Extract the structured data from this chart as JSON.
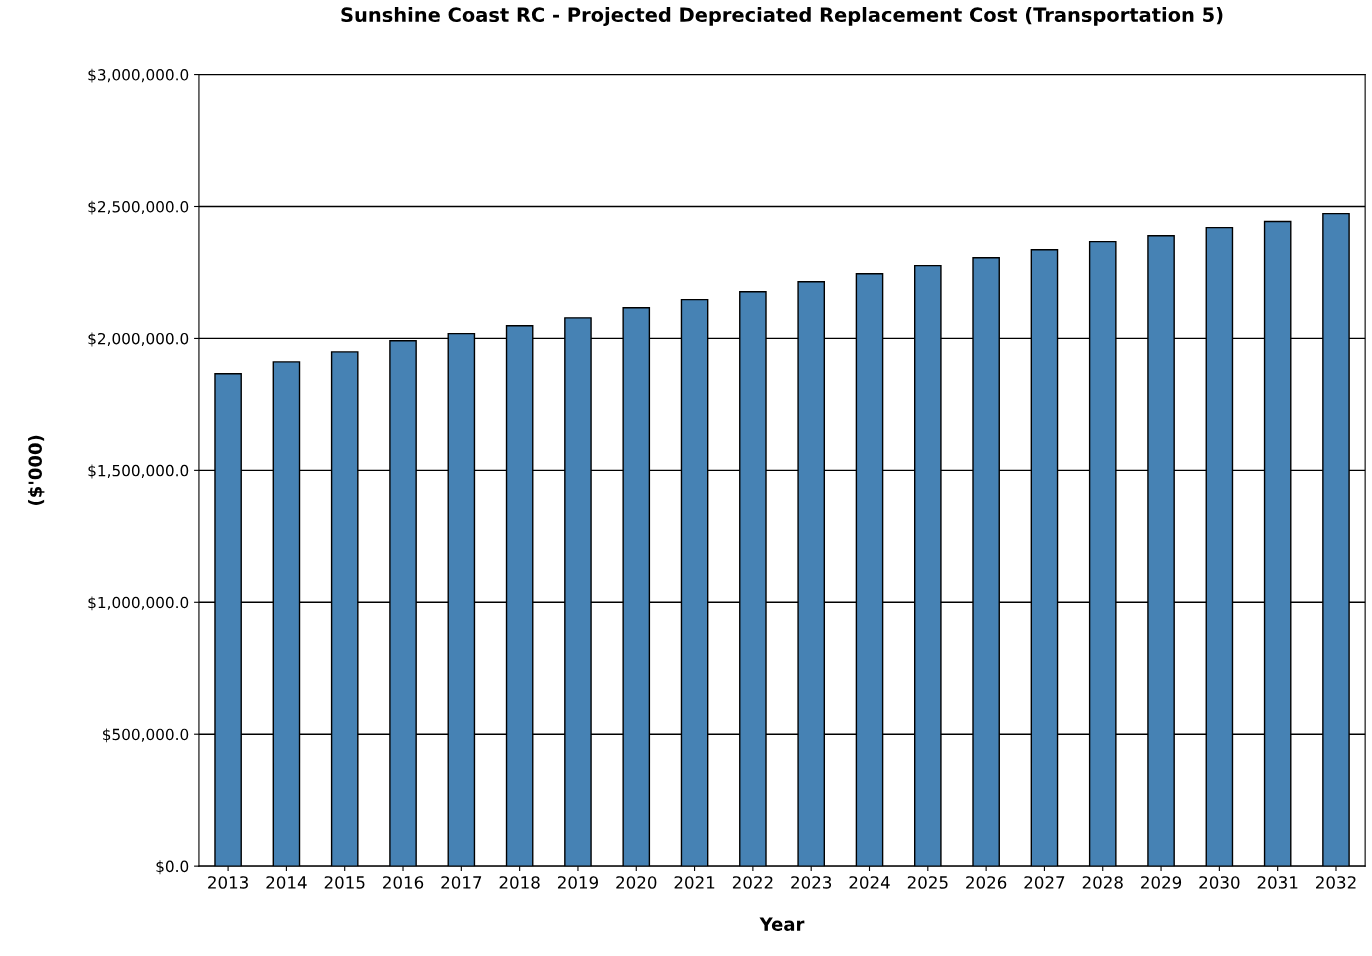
{
  "chart_data": {
    "type": "bar",
    "title": "Sunshine Coast RC - Projected Depreciated Replacement Cost (Transportation 5)",
    "xlabel": "Year",
    "ylabel": "($'000)",
    "categories": [
      "2013",
      "2014",
      "2015",
      "2016",
      "2017",
      "2018",
      "2019",
      "2020",
      "2021",
      "2022",
      "2023",
      "2024",
      "2025",
      "2026",
      "2027",
      "2028",
      "2029",
      "2030",
      "2031",
      "2032"
    ],
    "values": [
      1866000,
      1911000,
      1949000,
      1991000,
      2018000,
      2048000,
      2078000,
      2116000,
      2147000,
      2177000,
      2215000,
      2245000,
      2276000,
      2306000,
      2336000,
      2367000,
      2389000,
      2420000,
      2443000,
      2473000
    ],
    "color": "#4682b4",
    "ylim": [
      0,
      3000000
    ],
    "yticks": [
      {
        "value": 0,
        "label": "$0.0"
      },
      {
        "value": 500000,
        "label": "$500,000.0"
      },
      {
        "value": 1000000,
        "label": "$1,000,000.0"
      },
      {
        "value": 1500000,
        "label": "$1,500,000.0"
      },
      {
        "value": 2000000,
        "label": "$2,000,000.0"
      },
      {
        "value": 2500000,
        "label": "$2,500,000.0"
      },
      {
        "value": 3000000,
        "label": "$3,000,000.0"
      }
    ],
    "grid": "y",
    "legend": false
  }
}
